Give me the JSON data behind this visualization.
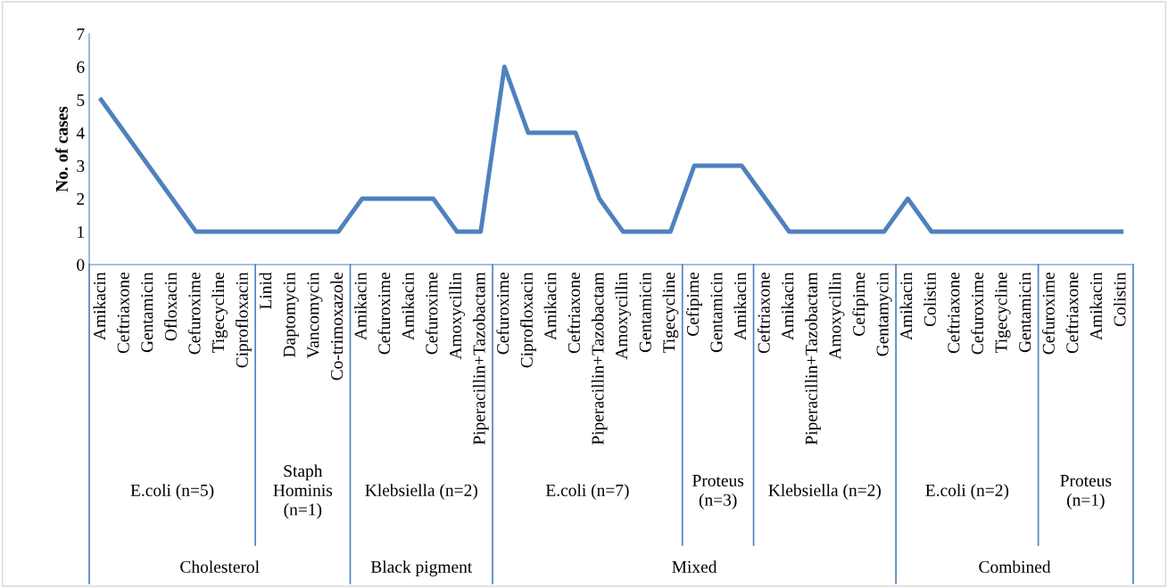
{
  "chart_data": {
    "type": "line",
    "ylabel": "No. of cases",
    "categories": [
      "Amikacin",
      "Ceftriaxone",
      "Gentamicin",
      "Ofloxacin",
      "Cefuroxime",
      "Tigecycline",
      "Ciprofloxacin",
      "Linid",
      "Daptomycin",
      "Vancomycin",
      "Co-trimoxazole",
      "Amikacin",
      "Cefuroxime",
      "Amikacin",
      "Cefuroxime",
      "Amoxycillin",
      "Piperacillin+Tazobactam",
      "Cefuroxime",
      "Ciprofloxacin",
      "Amikacin",
      "Ceftriaxone",
      "Piperacillin+Tazobactam",
      "Amoxycillin",
      "Gentamicin",
      "Tigecycline",
      "Cefipime",
      "Gentamicin",
      "Amikacin",
      "Ceftriaxone",
      "Amikacin",
      "Piperacillin+Tazobactam",
      "Amoxycillin",
      "Cefipime",
      "Gentamycin",
      "Amikacin",
      "Colistin",
      "Ceftriaxone",
      "Cefuroxime",
      "Tigecycline",
      "Gentamicin",
      "Cefuroxime",
      "Ceftriaxone",
      "Amikacin",
      "Colistin"
    ],
    "series": [
      {
        "color": "#4f81bd",
        "values": [
          5,
          4,
          3,
          2,
          1,
          1,
          1,
          1,
          1,
          1,
          1,
          2,
          2,
          2,
          2,
          1,
          1,
          6,
          4,
          4,
          4,
          2,
          1,
          1,
          1,
          3,
          3,
          3,
          2,
          1,
          1,
          1,
          1,
          1,
          2,
          1,
          1,
          1,
          1,
          1,
          1,
          1,
          1,
          1
        ]
      }
    ],
    "ylim": [
      0,
      7
    ],
    "yticks": [
      0,
      1,
      2,
      3,
      4,
      5,
      6,
      7
    ],
    "grid": false,
    "legend": false,
    "marker": "none",
    "line_style": "solid",
    "annotations": [
      "E.coli (n=5)",
      "Staph Hominis (n=1)",
      "Klebsiella (n=2)",
      "E.coli (n=7)",
      "Proteus (n=3)",
      "Klebsiella (n=2)",
      "E.coli (n=2)",
      "Proteus (n=1)",
      "Cholesterol",
      "Black pigment",
      "Mixed",
      "Combined"
    ]
  }
}
